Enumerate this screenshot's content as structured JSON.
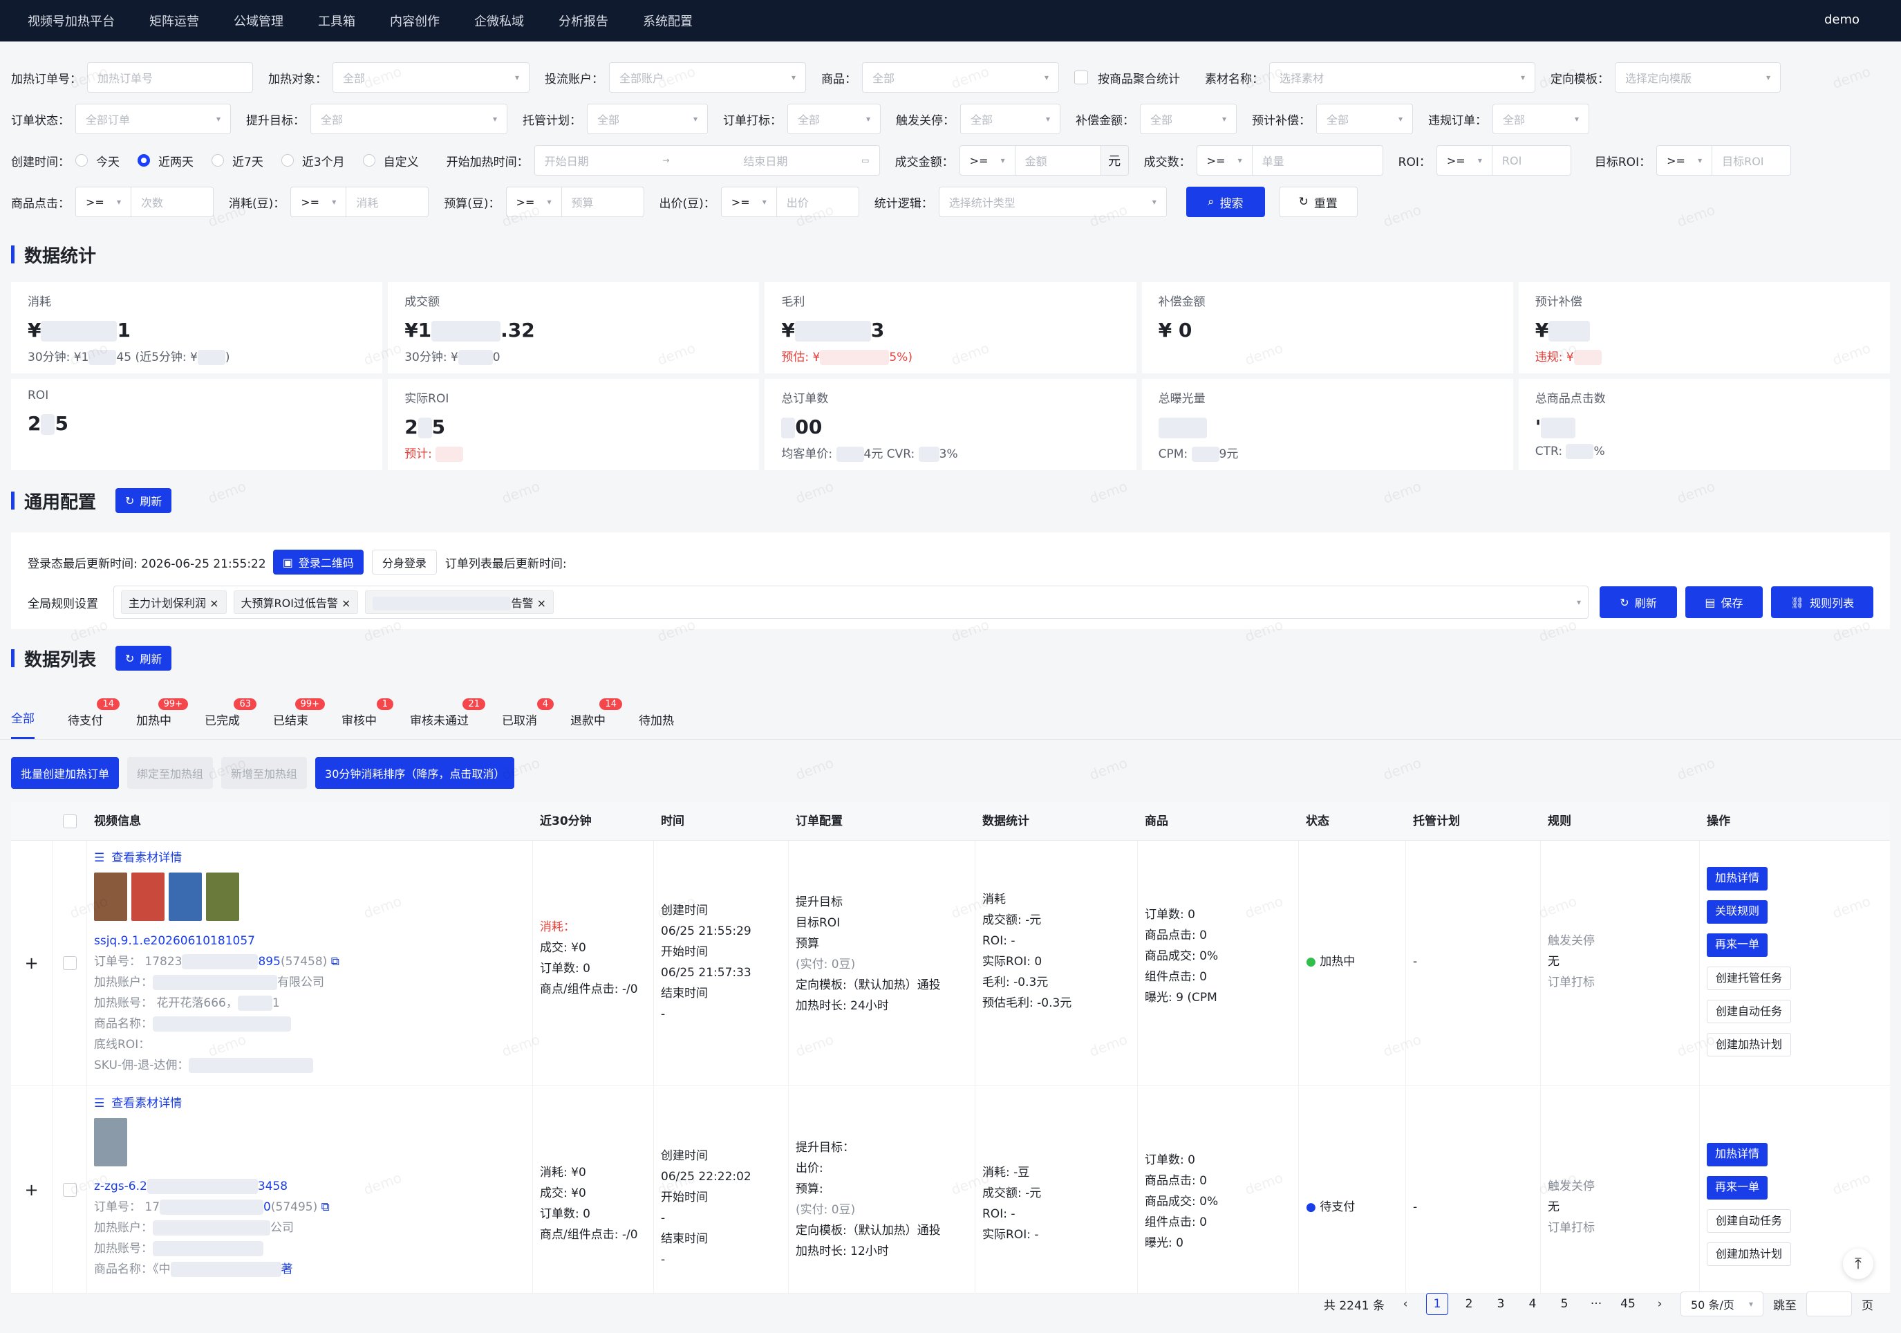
{
  "nav": {
    "items": [
      "视频号加热平台",
      "矩阵运营",
      "公域管理",
      "工具箱",
      "内容创作",
      "企微私域",
      "分析报告",
      "系统配置"
    ],
    "user": "demo"
  },
  "filters": {
    "row1": [
      {
        "label": "加热订单号：",
        "placeholder": "加热订单号"
      },
      {
        "label": "加热对象：",
        "value": "全部"
      },
      {
        "label": "投流账户：",
        "value": "全部账户"
      },
      {
        "label": "商品：",
        "value": "全部"
      },
      {
        "checkbox": "按商品聚合统计"
      },
      {
        "label": "素材名称：",
        "placeholder": "选择素材"
      },
      {
        "label": "定向模板：",
        "placeholder": "选择定向模版"
      }
    ],
    "row2": [
      {
        "label": "订单状态：",
        "value": "全部订单"
      },
      {
        "label": "提升目标：",
        "value": "全部"
      },
      {
        "label": "托管计划：",
        "value": "全部"
      },
      {
        "label": "订单打标：",
        "value": "全部"
      },
      {
        "label": "触发关停：",
        "value": "全部"
      },
      {
        "label": "补偿金额：",
        "value": "全部"
      },
      {
        "label": "预计补偿：",
        "value": "全部"
      },
      {
        "label": "违规订单：",
        "value": "全部"
      }
    ],
    "created_label": "创建时间：",
    "created_options": [
      "今天",
      "近两天",
      "近7天",
      "近3个月",
      "自定义"
    ],
    "start_label": "开始加热时间：",
    "start_ph": "开始日期",
    "end_ph": "结束日期",
    "deal_amount_label": "成交金额：",
    "op": ">=",
    "amount_ph": "金额",
    "unit_yuan": "元",
    "deal_count_label": "成交数：",
    "count_ph": "单量",
    "roi_label": "ROI：",
    "roi_ph": "ROI",
    "target_roi_label": "目标ROI：",
    "target_roi_ph": "目标ROI",
    "click_label": "商品点击：",
    "click_ph": "次数",
    "consume_label": "消耗(豆)：",
    "consume_ph": "消耗",
    "budget_label": "预算(豆)：",
    "budget_ph": "预算",
    "bid_label": "出价(豆)：",
    "bid_ph": "出价",
    "logic_label": "统计逻辑：",
    "logic_ph": "选择统计类型",
    "search": "搜索",
    "reset": "重置"
  },
  "stats": {
    "title": "数据统计",
    "cards": [
      {
        "t": "消耗",
        "v1": "¥",
        "v2": "1",
        "s": "30分钟: ¥1",
        "s2": "45 (近5分钟: ¥",
        "s3": ")"
      },
      {
        "t": "成交额",
        "v1": "¥1",
        "v2": ".32",
        "s": "30分钟: ¥",
        "s2": "0"
      },
      {
        "t": "毛利",
        "v1": "¥",
        "v2": "3",
        "s": "预估: ¥",
        "s2": "5%)"
      },
      {
        "t": "补偿金额",
        "v1": "¥ 0"
      },
      {
        "t": "预计补偿",
        "v1": "¥",
        "s": "违规: ¥"
      },
      {
        "t": "ROI",
        "v1": "2",
        "v2": "5"
      },
      {
        "t": "实际ROI",
        "v1": "2",
        "v2": "5",
        "s": "预计: "
      },
      {
        "t": "总订单数",
        "v2": "00",
        "s": "均客单价: ",
        "s2": "4元  CVR: ",
        "s3": "3%"
      },
      {
        "t": "总曝光量",
        "s": "CPM: ",
        "s2": "9元"
      },
      {
        "t": "总商品点击数",
        "v1": "'",
        "s": "CTR: ",
        "s2": "%"
      }
    ]
  },
  "config": {
    "title": "通用配置",
    "refresh": "刷新",
    "login_label": "登录态最后更新时间: 2026-06-25 21:55:22",
    "qr": "登录二维码",
    "sub_login": "分身登录",
    "order_update": "订单列表最后更新时间:",
    "rule_label": "全局规则设置",
    "tags": [
      "主力计划保利润",
      "大预算ROI过低告警",
      "告警"
    ],
    "save": "保存",
    "rules": "规则列表"
  },
  "list": {
    "title": "数据列表",
    "refresh": "刷新",
    "tabs": [
      {
        "label": "全部"
      },
      {
        "label": "待支付",
        "badge": "14"
      },
      {
        "label": "加热中",
        "badge": "99+"
      },
      {
        "label": "已完成",
        "badge": "63"
      },
      {
        "label": "已结束",
        "badge": "99+"
      },
      {
        "label": "审核中",
        "badge": "1"
      },
      {
        "label": "审核未通过",
        "badge": "21"
      },
      {
        "label": "已取消",
        "badge": "4"
      },
      {
        "label": "退款中",
        "badge": "14"
      },
      {
        "label": "待加热"
      }
    ],
    "batch": "批量创建加热订单",
    "bind": "绑定至加热组",
    "add": "新增至加热组",
    "sort": "30分钟消耗排序（降序，点击取消）",
    "headers": [
      "视频信息",
      "近30分钟",
      "时间",
      "订单配置",
      "数据统计",
      "商品",
      "状态",
      "托管计划",
      "规则",
      "操作"
    ],
    "rows": [
      {
        "detail": "查看素材详情",
        "name": "ssjq.9.1.e20260610181057",
        "order": "订单号： 17823",
        "order2": "895",
        "order3": "(57458)",
        "account": "加热账户：",
        "account2": "有限公司",
        "heat": "加热账号： 花开花落666，",
        "heat2": "1",
        "product": "商品名称：",
        "base": "底线ROI：",
        "sku": "SKU-佣-退-达佣：",
        "r30": [
          "消耗：",
          "成交: ¥0",
          "订单数: 0",
          "商点/组件点击: -/0"
        ],
        "time": [
          "创建时间",
          "06/25 21:55:29",
          "开始时间",
          "06/25 21:57:33",
          "结束时间",
          "-"
        ],
        "cfg": [
          "提升目标",
          "目标ROI",
          "预算",
          "(实付: 0豆)",
          "定向模板:（默认加热）通投",
          "加热时长: 24小时"
        ],
        "stat": [
          "消耗",
          "成交额: -元",
          "ROI: -",
          "实际ROI: 0",
          "毛利: -0.3元",
          "预估毛利: -0.3元"
        ],
        "goods": [
          "订单数: 0",
          "商品点击: 0",
          "商品成交: 0%",
          "组件点击: 0",
          "曝光: 9 (CPM"
        ],
        "status": "加热中",
        "plan": "-",
        "rule": [
          "触发关停",
          "无",
          "订单打标"
        ],
        "ops": [
          "加热详情",
          "关联规则",
          "再来一单",
          "创建托管任务",
          "创建自动任务",
          "创建加热计划"
        ]
      },
      {
        "detail": "查看素材详情",
        "name": "z-zgs-6.2",
        "name2": "3458",
        "order": "订单号： 17",
        "order2": "0",
        "order3": "(57495)",
        "account": "加热账户：",
        "account2": "公司",
        "heat": "加热账号：",
        "product": "商品名称：《中",
        "product2": "著",
        "r30": [
          "消耗: ¥0",
          "成交: ¥0",
          "订单数: 0",
          "商点/组件点击: -/0"
        ],
        "time": [
          "创建时间",
          "06/25 22:22:02",
          "开始时间",
          "-",
          "结束时间",
          "-"
        ],
        "cfg": [
          "提升目标：",
          "出价:",
          "预算:",
          "(实付: 0豆)",
          "定向模板:（默认加热）通投",
          "加热时长: 12小时"
        ],
        "stat": [
          "消耗: -豆",
          "成交额: -元",
          "ROI: -",
          "实际ROI: -"
        ],
        "goods": [
          "订单数: 0",
          "商品点击: 0",
          "商品成交: 0%",
          "组件点击: 0",
          "曝光: 0"
        ],
        "status": "待支付",
        "plan": "-",
        "rule": [
          "触发关停",
          "无",
          "订单打标"
        ],
        "ops": [
          "加热详情",
          "再来一单",
          "创建自动任务",
          "创建加热计划"
        ]
      }
    ]
  },
  "pager": {
    "total": "共 2241 条",
    "pages": [
      "1",
      "2",
      "3",
      "4",
      "5",
      "45"
    ],
    "size": "50 条/页",
    "goto": "跳至",
    "page": "页"
  },
  "watermark": "demo"
}
